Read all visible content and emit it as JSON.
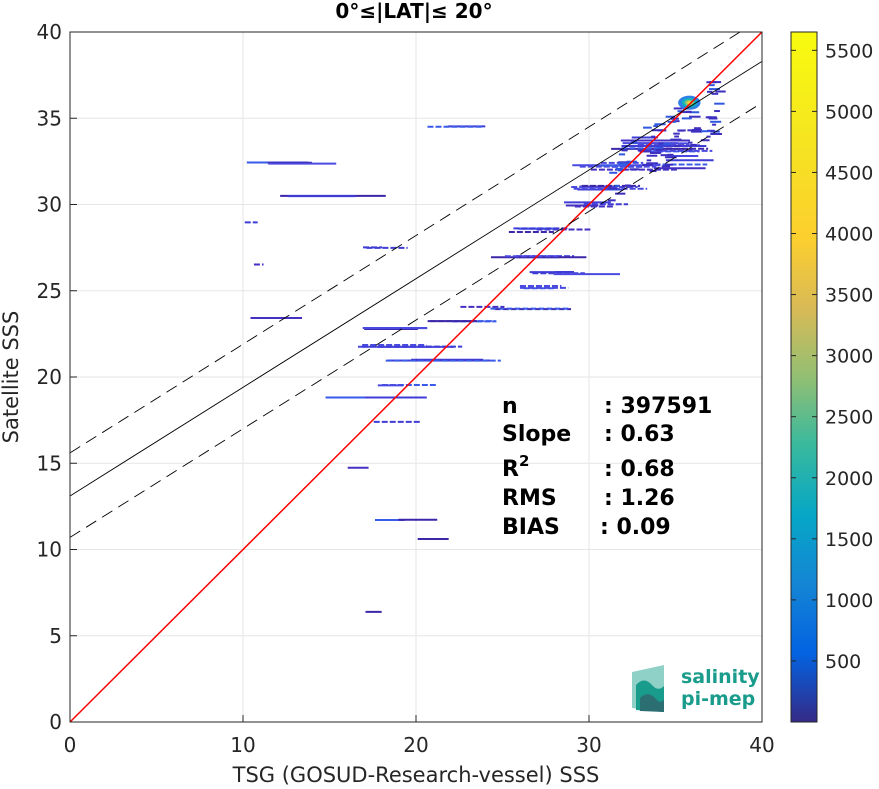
{
  "chart_data": {
    "type": "scatter",
    "title": "0°≤|LAT|≤ 20°",
    "xlabel": "TSG (GOSUD-Research-vessel) SSS",
    "ylabel": "Satellite SSS",
    "xlim": [
      0,
      40
    ],
    "ylim": [
      0,
      40
    ],
    "x_ticks": [
      0,
      10,
      20,
      30,
      40
    ],
    "y_ticks": [
      0,
      5,
      10,
      15,
      20,
      25,
      30,
      35,
      40
    ],
    "grid": true,
    "colorbar": {
      "colormap": "parula",
      "range": [
        0,
        5650
      ],
      "ticks": [
        500,
        1000,
        1500,
        2000,
        2500,
        3000,
        3500,
        4000,
        4500,
        5000,
        5500
      ]
    },
    "lines": [
      {
        "name": "1:1",
        "color": "#ff0000",
        "slope": 1.0,
        "intercept": 0.0,
        "style": "solid"
      },
      {
        "name": "fit",
        "color": "#000000",
        "slope": 0.63,
        "intercept": 13.1,
        "style": "solid"
      },
      {
        "name": "fit_upper",
        "color": "#000000",
        "slope": 0.63,
        "intercept": 15.6,
        "style": "dashed"
      },
      {
        "name": "fit_lower",
        "color": "#000000",
        "slope": 0.63,
        "intercept": 10.7,
        "style": "dashed"
      }
    ],
    "stats": [
      {
        "label": "n",
        "value": ": 397591"
      },
      {
        "label": "Slope",
        "value": ": 0.63"
      },
      {
        "label": "R",
        "sup": "2",
        "value": ": 0.68"
      },
      {
        "label": "RMS",
        "value": ": 1.26"
      },
      {
        "label": "BIAS",
        "value": ": 0.09"
      }
    ],
    "density_segments": [
      [
        33.0,
        37.5,
        32.8,
        0.9,
        8
      ],
      [
        31.0,
        37.0,
        33.5,
        0.55,
        8
      ],
      [
        29.0,
        36.0,
        32.2,
        0.35,
        6
      ],
      [
        27.5,
        34.0,
        31.0,
        0.25,
        5
      ],
      [
        28.0,
        33.0,
        30.0,
        0.2,
        4
      ],
      [
        25.0,
        33.0,
        28.5,
        0.12,
        5
      ],
      [
        24.0,
        31.0,
        27.0,
        0.12,
        4
      ],
      [
        26.0,
        32.0,
        26.0,
        0.1,
        4
      ],
      [
        24.5,
        30.0,
        25.2,
        0.08,
        3
      ],
      [
        22.0,
        30.0,
        24.0,
        0.08,
        3
      ],
      [
        20.0,
        28.5,
        23.2,
        0.07,
        3
      ],
      [
        16.0,
        22.0,
        22.8,
        0.06,
        4
      ],
      [
        15.0,
        23.0,
        21.8,
        0.06,
        4
      ],
      [
        18.0,
        25.0,
        21.0,
        0.05,
        3
      ],
      [
        16.5,
        22.0,
        19.5,
        0.04,
        2
      ],
      [
        14.5,
        21.0,
        18.8,
        0.04,
        2
      ],
      [
        17.5,
        20.5,
        17.4,
        0.04,
        1
      ],
      [
        15.5,
        17.5,
        14.7,
        0.04,
        1
      ],
      [
        17.5,
        24.0,
        11.7,
        0.03,
        2
      ],
      [
        19.5,
        22.5,
        10.6,
        0.03,
        1
      ],
      [
        17.0,
        19.5,
        6.4,
        0.03,
        1
      ],
      [
        10.0,
        16.0,
        32.4,
        0.05,
        3
      ],
      [
        11.5,
        19.5,
        30.5,
        0.04,
        2
      ],
      [
        9.0,
        12.5,
        29.0,
        0.04,
        1
      ],
      [
        10.5,
        12.5,
        26.5,
        0.04,
        1
      ],
      [
        10.0,
        13.5,
        23.4,
        0.04,
        1
      ],
      [
        16.0,
        21.0,
        27.5,
        0.05,
        2
      ],
      [
        20.0,
        26.0,
        34.5,
        0.05,
        2
      ]
    ],
    "hotspot": [
      35.8,
      35.9
    ]
  },
  "logo": {
    "line1": "salinity",
    "line2": "pi-mep",
    "colors": [
      "#1a9c8c",
      "#8fd1c7",
      "#2c6f72"
    ]
  }
}
